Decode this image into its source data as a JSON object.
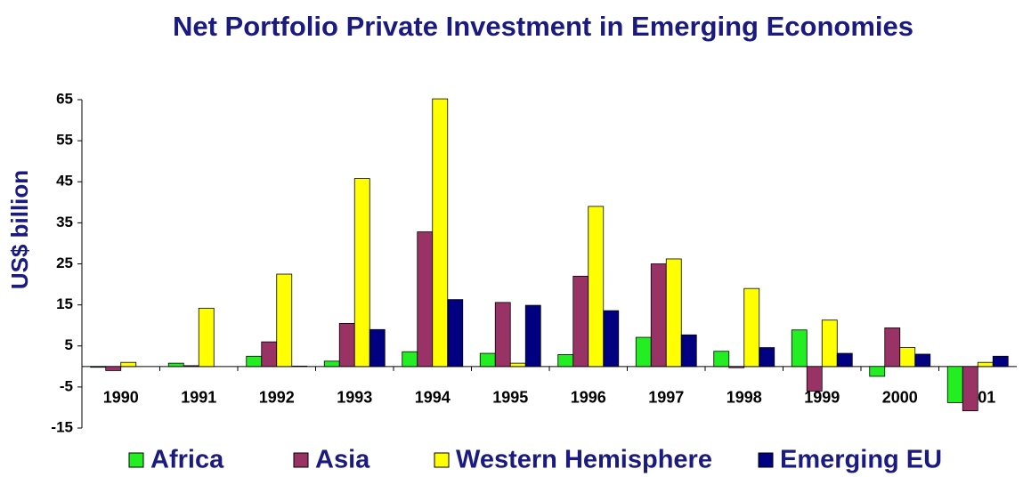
{
  "chart_data": {
    "type": "bar",
    "title": "Net Portfolio Private Investment in Emerging Economies",
    "y_label": "US$ billion",
    "categories": [
      "1990",
      "1991",
      "1992",
      "1993",
      "1994",
      "1995",
      "1996",
      "1997",
      "1998",
      "1999",
      "2000",
      "2001"
    ],
    "series": [
      {
        "name": "Africa",
        "color": "#22ee22",
        "values": [
          -0.2,
          0.8,
          2.5,
          1.3,
          3.6,
          3.2,
          2.9,
          7.1,
          3.7,
          8.9,
          -2.4,
          -8.8
        ]
      },
      {
        "name": "Asia",
        "color": "#993366",
        "values": [
          -1,
          0.2,
          6,
          10.5,
          32.8,
          15.6,
          22,
          25,
          -0.3,
          -6,
          9.4,
          -10.8
        ]
      },
      {
        "name": "Western Hemisphere",
        "color": "#ffff00",
        "values": [
          1,
          14.2,
          22.5,
          45.8,
          65.2,
          0.8,
          39,
          26.2,
          19,
          11.3,
          4.6,
          1
        ]
      },
      {
        "name": "Emerging EU",
        "color": "#000080",
        "values": [
          0,
          0,
          0.1,
          9,
          16.3,
          14.9,
          13.6,
          7.7,
          4.6,
          3.2,
          3,
          2.5
        ]
      }
    ],
    "ylim": [
      -15,
      65
    ],
    "yticks": [
      -15,
      -5,
      5,
      15,
      25,
      35,
      45,
      55,
      65
    ],
    "legend": "bottom"
  }
}
